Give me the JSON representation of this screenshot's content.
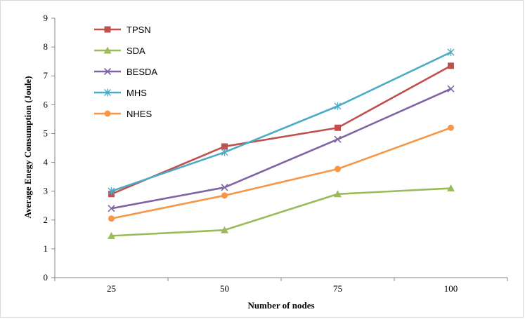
{
  "chart_data": {
    "type": "line",
    "title": "",
    "xlabel": "Number  of nodes",
    "ylabel": "Average  Enegy  Consumption  (Joule)",
    "categories": [
      "25",
      "50",
      "75",
      "100"
    ],
    "ylim": [
      0,
      9
    ],
    "yticks": [
      "0",
      "1",
      "2",
      "3",
      "4",
      "5",
      "6",
      "7",
      "8",
      "9"
    ],
    "grid": false,
    "legend_position": "top-left",
    "series": [
      {
        "name": "TPSN",
        "color": "#C0504D",
        "marker": "square",
        "values": [
          2.9,
          4.55,
          5.2,
          7.35
        ]
      },
      {
        "name": "SDA",
        "color": "#9BBB59",
        "marker": "triangle",
        "values": [
          1.45,
          1.65,
          2.9,
          3.1
        ]
      },
      {
        "name": "BESDA",
        "color": "#8064A2",
        "marker": "x",
        "values": [
          2.4,
          3.13,
          4.8,
          6.55
        ]
      },
      {
        "name": "MHS",
        "color": "#4BACC6",
        "marker": "star",
        "values": [
          3.0,
          4.35,
          5.95,
          7.82
        ]
      },
      {
        "name": "NHES",
        "color": "#F79646",
        "marker": "circle",
        "values": [
          2.05,
          2.85,
          3.77,
          5.2
        ]
      }
    ]
  }
}
